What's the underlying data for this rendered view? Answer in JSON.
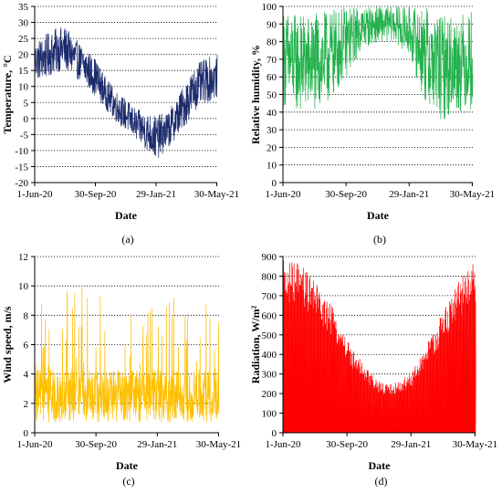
{
  "chart_data": [
    {
      "id": "a",
      "type": "line",
      "caption": "(a)",
      "xlabel": "Date",
      "ylabel": "Temperature, °C",
      "xlim": [
        "2020-06-01",
        "2021-05-31"
      ],
      "x_ticks": [
        "1-Jun-20",
        "30-Sep-20",
        "29-Jan-21",
        "30-May-21"
      ],
      "x_tick_dates": [
        "2020-06-01",
        "2020-09-30",
        "2021-01-29",
        "2021-05-30"
      ],
      "ylim": [
        -20,
        35
      ],
      "y_ticks": [
        -20,
        -15,
        -10,
        -5,
        0,
        5,
        10,
        15,
        20,
        25,
        30,
        35
      ],
      "grid": "horizontal dotted",
      "series": [
        {
          "color": "#1a2a6c",
          "x": [
            "2020-06-01",
            "2020-06-20",
            "2020-07-10",
            "2020-07-30",
            "2020-08-20",
            "2020-09-10",
            "2020-09-30",
            "2020-10-20",
            "2020-11-10",
            "2020-12-01",
            "2020-12-20",
            "2021-01-10",
            "2021-01-29",
            "2021-02-20",
            "2021-03-10",
            "2021-03-30",
            "2021-04-20",
            "2021-05-10",
            "2021-05-31"
          ],
          "mean": [
            18,
            19,
            21,
            22,
            19,
            16,
            13,
            8,
            4,
            1,
            -2,
            -4,
            -6,
            -4,
            0,
            5,
            10,
            12,
            13
          ],
          "amplitude": [
            6,
            7,
            7,
            7,
            6,
            6,
            6,
            5,
            5,
            5,
            5,
            6,
            7,
            6,
            6,
            7,
            7,
            7,
            7
          ],
          "max": 30,
          "min": -18
        }
      ]
    },
    {
      "id": "b",
      "type": "line",
      "caption": "(b)",
      "xlabel": "Date",
      "ylabel": "Relative humidity, %",
      "xlim": [
        "2020-06-01",
        "2021-05-31"
      ],
      "x_ticks": [
        "1-Jun-20",
        "30-Sep-20",
        "29-Jan-21",
        "30-May-21"
      ],
      "x_tick_dates": [
        "2020-06-01",
        "2020-09-30",
        "2021-01-29",
        "2021-05-30"
      ],
      "ylim": [
        0,
        100
      ],
      "y_ticks": [
        0,
        10,
        20,
        30,
        40,
        50,
        60,
        70,
        80,
        90,
        100
      ],
      "grid": "horizontal dotted",
      "series": [
        {
          "color": "#22b24c",
          "x": [
            "2020-06-01",
            "2020-07-01",
            "2020-08-01",
            "2020-09-01",
            "2020-10-01",
            "2020-11-01",
            "2020-12-01",
            "2021-01-01",
            "2021-02-01",
            "2021-03-01",
            "2021-04-01",
            "2021-05-01",
            "2021-05-31"
          ],
          "mean": [
            70,
            68,
            68,
            72,
            80,
            88,
            90,
            90,
            85,
            72,
            65,
            68,
            70
          ],
          "amplitude": [
            28,
            28,
            28,
            26,
            20,
            12,
            10,
            10,
            15,
            28,
            30,
            28,
            28
          ],
          "max": 100,
          "min": 25
        }
      ]
    },
    {
      "id": "c",
      "type": "line",
      "caption": "(c)",
      "xlabel": "Date",
      "ylabel": "Wind speed, m/s",
      "xlim": [
        "2020-06-01",
        "2021-05-31"
      ],
      "x_ticks": [
        "1-Jun-20",
        "30-Sep-20",
        "29-Jan-21",
        "30-May-21"
      ],
      "x_tick_dates": [
        "2020-06-01",
        "2020-09-30",
        "2021-01-29",
        "2021-05-30"
      ],
      "ylim": [
        0,
        12
      ],
      "y_ticks": [
        0,
        2,
        4,
        6,
        8,
        10,
        12
      ],
      "grid": "horizontal dotted",
      "series": [
        {
          "color": "#ffc000",
          "x": [
            "2020-06-01",
            "2020-09-30",
            "2021-01-29",
            "2021-05-31"
          ],
          "mean": [
            2.5,
            2.5,
            2.5,
            2.5
          ],
          "amplitude": [
            1.8,
            1.8,
            1.8,
            1.8
          ],
          "max": 11,
          "min": 0
        }
      ]
    },
    {
      "id": "d",
      "type": "area",
      "caption": "(d)",
      "xlabel": "Date",
      "ylabel": "Radiation, W/m²",
      "xlim": [
        "2020-06-01",
        "2021-05-31"
      ],
      "x_ticks": [
        "1-Jun-20",
        "30-Sep-20",
        "29-Jan-21",
        "30-May-21"
      ],
      "x_tick_dates": [
        "2020-06-01",
        "2020-09-30",
        "2021-01-29",
        "2021-05-30"
      ],
      "ylim": [
        0,
        900
      ],
      "y_ticks": [
        0,
        100,
        200,
        300,
        400,
        500,
        600,
        700,
        800,
        900
      ],
      "grid": "horizontal dotted",
      "series": [
        {
          "color": "#ff0000",
          "x": [
            "2020-06-01",
            "2020-07-01",
            "2020-08-01",
            "2020-09-01",
            "2020-10-01",
            "2020-11-01",
            "2020-12-01",
            "2020-12-21",
            "2021-01-10",
            "2021-02-01",
            "2021-03-01",
            "2021-04-01",
            "2021-05-01",
            "2021-05-31"
          ],
          "envelope": [
            880,
            870,
            780,
            650,
            480,
            340,
            260,
            250,
            270,
            320,
            460,
            630,
            790,
            880
          ],
          "min": 0
        }
      ]
    }
  ]
}
